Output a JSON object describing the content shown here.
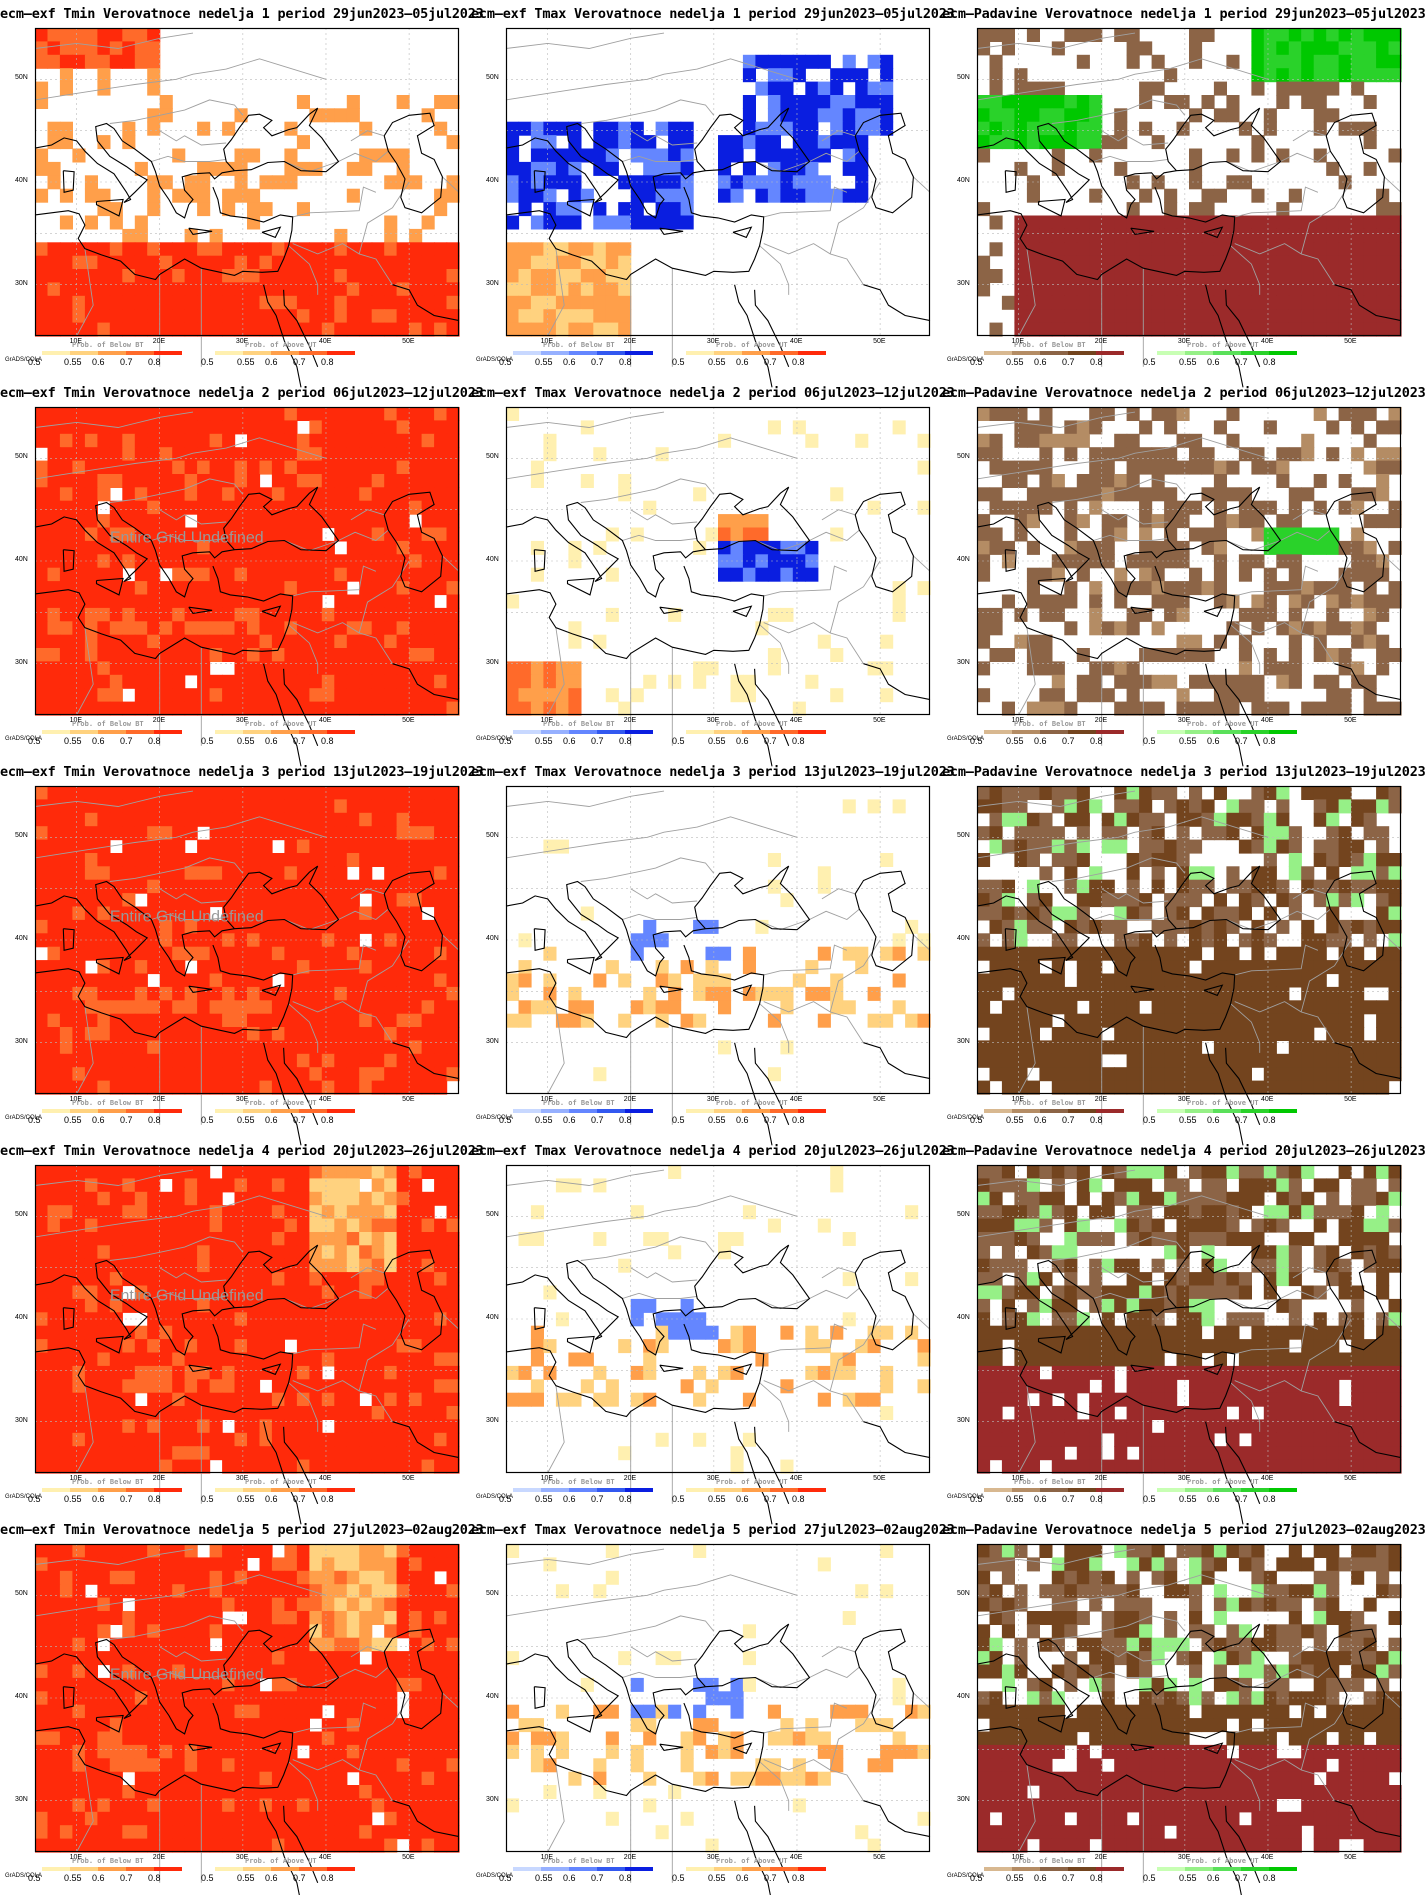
{
  "rows": [
    {
      "week_title": "nedelja 1 period 29jun2023–05jul2023",
      "tmin_title": "ecm–exf Tmin Verovatnoce nedelja 1 period 29jun2023–05jul2023",
      "tmax_title": "ecm–exf Tmax Verovatnoce nedelja 1 period 29jun2023–05jul2023",
      "pad_title": "ecm–Padavine Verovatnoce nedelja 1 period 29jun2023–05jul2023"
    },
    {
      "week_title": "nedelja 2 period 06jul2023–12jul2023",
      "tmin_title": "ecm–exf Tmin Verovatnoce nedelja 2 period 06jul2023–12jul2023",
      "tmax_title": "ecm–exf Tmax Verovatnoce nedelja 2 period 06jul2023–12jul2023",
      "pad_title": "ecm–Padavine Verovatnoce nedelja 2 period 06jul2023–12jul2023"
    },
    {
      "week_title": "nedelja 3 period 13jul2023–19jul2023",
      "tmin_title": "ecm–exf Tmin Verovatnoce nedelja 3 period 13jul2023–19jul2023",
      "tmax_title": "ecm–exf Tmax Verovatnoce nedelja 3 period 13jul2023–19jul2023",
      "pad_title": "ecm–Padavine Verovatnoce nedelja 3 period 13jul2023–19jul2023"
    },
    {
      "week_title": "nedelja 4 period 20jul2023–26jul2023",
      "tmin_title": "ecm–exf Tmin Verovatnoce nedelja 4 period 20jul2023–26jul2023",
      "tmax_title": "ecm–exf Tmax Verovatnoce nedelja 4 period 20jul2023–26jul2023",
      "pad_title": "ecm–Padavine Verovatnoce nedelja 4 period 20jul2023–26jul2023"
    },
    {
      "week_title": "nedelja 5 period 27jul2023–02aug2023",
      "tmin_title": "ecm–exf Tmin Verovatnoce nedelja 5 period 27jul2023–02aug2023",
      "tmax_title": "ecm–exf Tmax Verovatnoce nedelja 5 period 27jul2023–02aug2023",
      "pad_title": "ecm–Padavine Verovatnoce nedelja 5 period 27jul2023–02aug2023"
    }
  ],
  "axes": {
    "lon_labels": [
      "10E",
      "20E",
      "30E",
      "40E",
      "50E"
    ],
    "lat_labels": [
      "50N",
      "40N",
      "30N"
    ]
  },
  "watermark": "Entire Grid Undefined",
  "legend": {
    "grads_label": "GrADS/COLA",
    "below_label": "Prob. of Below BT",
    "above_label": "Prob. of Above UT",
    "ticks": [
      "0.5",
      "0.55",
      "0.6",
      "0.7",
      "0.8"
    ]
  },
  "colors": {
    "tmin_above": [
      "#fff0b0",
      "#ffd27f",
      "#ff9f4a",
      "#ff6a2a",
      "#ff2a0a"
    ],
    "tmax_below": [
      "#c8d8ff",
      "#96b0ff",
      "#6486ff",
      "#3258f0",
      "#0a1ee0"
    ],
    "pad_below": [
      "#d8b890",
      "#b48c64",
      "#8c6446",
      "#73441e",
      "#9b2a2a"
    ],
    "pad_above": [
      "#c8ffb4",
      "#96f087",
      "#5ae05a",
      "#2ad22a",
      "#00c800"
    ],
    "coast": "#000000",
    "border": "#a0a0a0"
  }
}
